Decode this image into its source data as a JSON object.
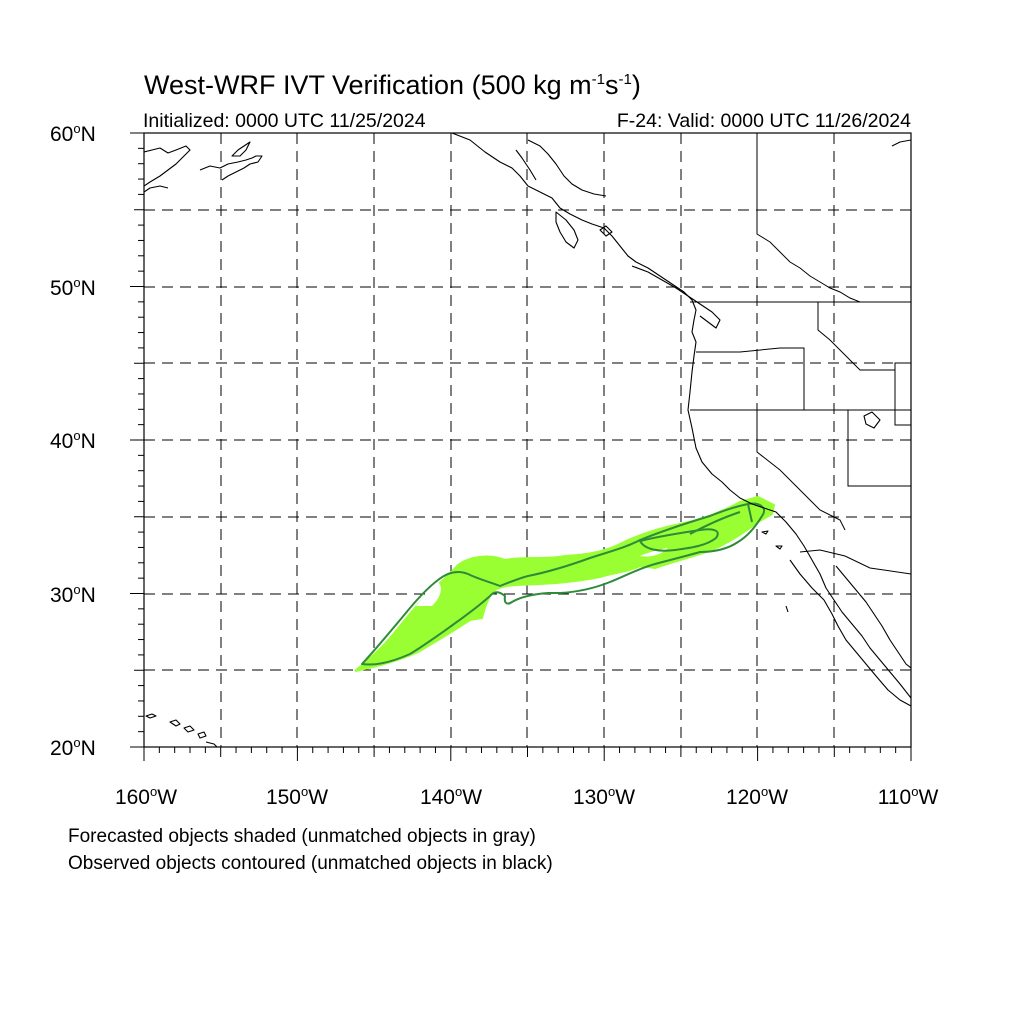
{
  "title": {
    "prefix": "West-WRF IVT Verification (500 kg m",
    "exp1": "-1",
    "mid": "s",
    "exp2": "-1",
    "suffix": ")"
  },
  "subtitle_left": "Initialized: 0000 UTC 11/25/2024",
  "subtitle_right": "F-24: Valid: 0000 UTC 11/26/2024",
  "lat_labels": [
    {
      "deg": "60",
      "dir": "N"
    },
    {
      "deg": "50",
      "dir": "N"
    },
    {
      "deg": "40",
      "dir": "N"
    },
    {
      "deg": "30",
      "dir": "N"
    },
    {
      "deg": "20",
      "dir": "N"
    }
  ],
  "lon_labels": [
    {
      "deg": "160",
      "dir": "W"
    },
    {
      "deg": "150",
      "dir": "W"
    },
    {
      "deg": "140",
      "dir": "W"
    },
    {
      "deg": "130",
      "dir": "W"
    },
    {
      "deg": "120",
      "dir": "W"
    },
    {
      "deg": "110",
      "dir": "W"
    }
  ],
  "notes": [
    "Forecasted objects shaded (unmatched objects in gray)",
    "Observed objects contoured (unmatched objects in black)"
  ],
  "colors": {
    "forecast_fill": "#99ff33",
    "observed_contour": "#2e8b3a",
    "coastline": "#000000",
    "grid": "#000000"
  },
  "map_extent": {
    "lon_min": -160,
    "lon_max": -110,
    "lat_min": 20,
    "lat_max": 60
  }
}
